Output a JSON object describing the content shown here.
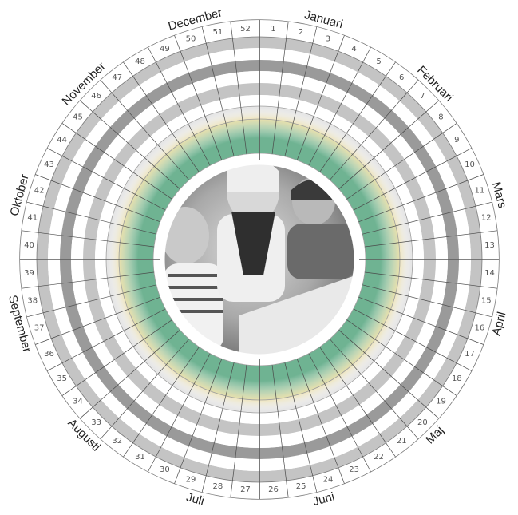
{
  "wheel": {
    "months": [
      "Januari",
      "Februari",
      "Mars",
      "April",
      "Maj",
      "Juni",
      "Juli",
      "Augusti",
      "September",
      "Oktober",
      "November",
      "December"
    ],
    "weeks": [
      1,
      2,
      3,
      4,
      5,
      6,
      7,
      8,
      9,
      10,
      11,
      12,
      13,
      14,
      15,
      16,
      17,
      18,
      19,
      20,
      21,
      22,
      23,
      24,
      25,
      26,
      27,
      28,
      29,
      30,
      31,
      32,
      33,
      34,
      35,
      36,
      37,
      38,
      39,
      40,
      41,
      42,
      43,
      44,
      45,
      46,
      47,
      48,
      49,
      50,
      51,
      52
    ],
    "colors": {
      "outline": "#7a7a7a",
      "ring_dark": "#9a9a9a",
      "ring_mid": "#c4c4c4",
      "ring_light": "#e6e6e6",
      "ring_green": "#6fb392",
      "glow": "#efe3b0",
      "photo_bg": "#8f8f8f"
    },
    "center_image": "children-photo-icon"
  }
}
